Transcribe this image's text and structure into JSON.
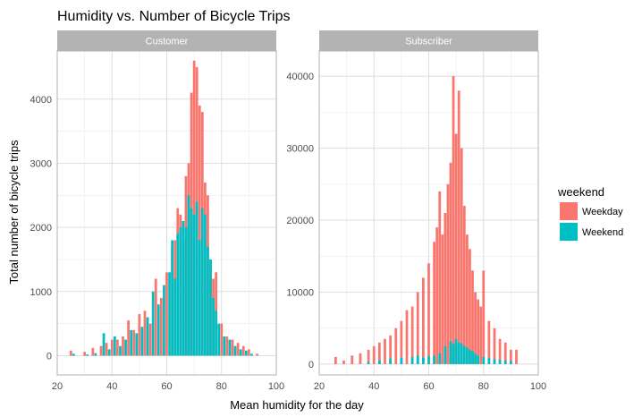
{
  "chart_data": {
    "type": "bar",
    "title": "Humidity vs. Number of Bicycle Trips",
    "xlabel": "Mean humidity for the day",
    "ylabel": "Total number of bicycle trips",
    "grid": true,
    "legend": {
      "title": "weekend",
      "placement": "right",
      "entries": [
        {
          "label": "Weekday",
          "color": "#F8766D"
        },
        {
          "label": "Weekend",
          "color": "#00BFC4"
        }
      ]
    },
    "panels": [
      {
        "name": "Customer",
        "xlim": [
          20,
          100
        ],
        "ylim": [
          -300,
          4750
        ],
        "x_ticks": [
          20,
          40,
          60,
          80,
          100
        ],
        "y_ticks": [
          0,
          1000,
          2000,
          3000,
          4000
        ],
        "series": [
          {
            "name": "Weekday",
            "x": [
              25,
              30,
              33,
              36,
              38,
              40,
              42,
              44,
              46,
              48,
              50,
              52,
              54,
              56,
              58,
              60,
              62,
              63,
              64,
              65,
              66,
              67,
              68,
              69,
              70,
              71,
              72,
              73,
              74,
              75,
              76,
              77,
              78,
              80,
              82,
              84,
              86,
              88,
              90,
              93
            ],
            "values": [
              80,
              60,
              120,
              150,
              200,
              250,
              250,
              300,
              550,
              400,
              650,
              700,
              500,
              1200,
              900,
              1300,
              1700,
              1800,
              2300,
              2200,
              1800,
              2800,
              3000,
              4100,
              4600,
              4500,
              3900,
              3800,
              2700,
              2500,
              1500,
              1200,
              1300,
              500,
              300,
              250,
              200,
              150,
              100,
              30
            ]
          },
          {
            "name": "Weekend",
            "x": [
              26,
              31,
              34,
              37,
              39,
              41,
              43,
              45,
              47,
              49,
              51,
              53,
              55,
              57,
              59,
              61,
              62,
              63,
              64,
              65,
              66,
              67,
              68,
              69,
              70,
              71,
              72,
              73,
              74,
              75,
              76,
              77,
              78,
              79,
              81,
              83,
              85,
              87,
              89,
              91
            ],
            "values": [
              30,
              20,
              40,
              350,
              100,
              300,
              150,
              250,
              400,
              350,
              450,
              600,
              1000,
              800,
              1100,
              1300,
              1800,
              1200,
              1900,
              2000,
              2100,
              2000,
              2500,
              2300,
              2200,
              2400,
              1800,
              2300,
              2200,
              1700,
              1500,
              900,
              700,
              500,
              300,
              250,
              150,
              100,
              80,
              30
            ]
          }
        ]
      },
      {
        "name": "Subscriber",
        "xlim": [
          20,
          100
        ],
        "ylim": [
          -1500,
          43500
        ],
        "x_ticks": [
          20,
          40,
          60,
          80,
          100
        ],
        "y_ticks": [
          0,
          10000,
          20000,
          30000,
          40000
        ],
        "series": [
          {
            "name": "Weekday",
            "x": [
              26,
              29,
              32,
              35,
              38,
              40,
              42,
              44,
              46,
              48,
              50,
              52,
              54,
              56,
              58,
              60,
              62,
              63,
              64,
              65,
              66,
              67,
              68,
              69,
              70,
              71,
              72,
              73,
              74,
              75,
              76,
              77,
              78,
              79,
              80,
              82,
              84,
              86,
              88,
              90,
              92
            ],
            "values": [
              1000,
              500,
              1200,
              1500,
              2000,
              2500,
              3000,
              3500,
              4000,
              5000,
              6000,
              7500,
              8000,
              10000,
              12000,
              14000,
              17000,
              19000,
              24000,
              18000,
              21000,
              25000,
              28000,
              40000,
              32000,
              38000,
              30000,
              22000,
              18000,
              16000,
              13000,
              10000,
              9000,
              8000,
              13000,
              6000,
              5000,
              3500,
              3000,
              2000,
              2000
            ]
          },
          {
            "name": "Weekend",
            "x": [
              38,
              42,
              46,
              50,
              54,
              56,
              58,
              60,
              62,
              64,
              66,
              68,
              69,
              70,
              71,
              72,
              73,
              74,
              75,
              76,
              77,
              78,
              80,
              82,
              84,
              86,
              88,
              90
            ],
            "values": [
              300,
              500,
              800,
              900,
              1000,
              1200,
              900,
              1100,
              1200,
              1500,
              2500,
              3200,
              2800,
              3500,
              3000,
              2900,
              2500,
              2300,
              2000,
              1800,
              1500,
              1200,
              1000,
              900,
              700,
              600,
              500,
              400
            ]
          }
        ]
      }
    ]
  }
}
